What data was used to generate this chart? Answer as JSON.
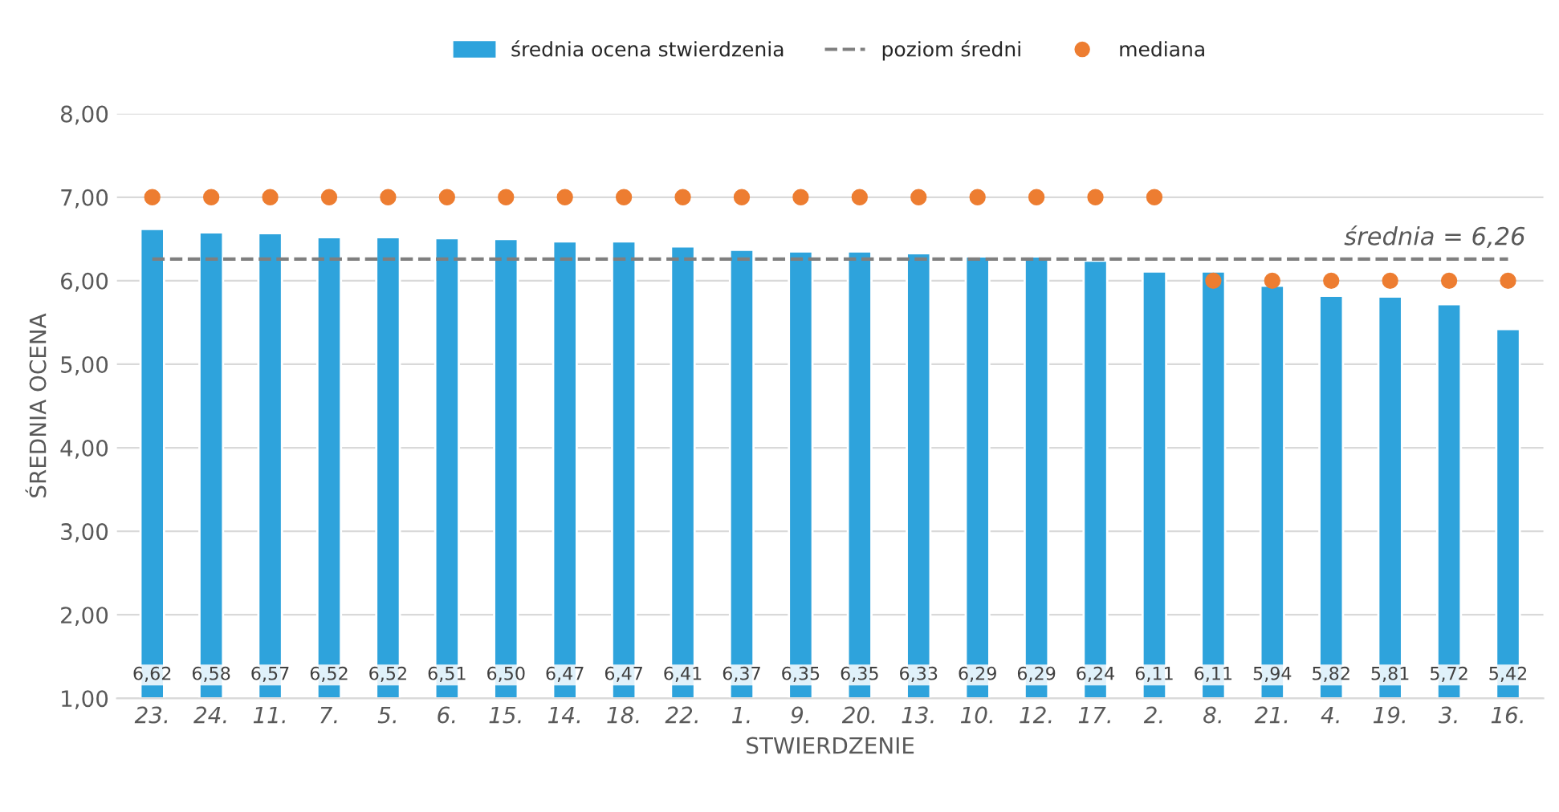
{
  "chart_data": {
    "type": "bar",
    "xlabel": "STWIERDZENIE",
    "ylabel": "ŚREDNIA OCENA",
    "categories": [
      "23.",
      "24.",
      "11.",
      "7.",
      "5.",
      "6.",
      "15.",
      "14.",
      "18.",
      "22.",
      "1.",
      "9.",
      "20.",
      "13.",
      "10.",
      "12.",
      "17.",
      "2.",
      "8.",
      "21.",
      "4.",
      "19.",
      "3.",
      "16."
    ],
    "series": [
      {
        "name": "średnia ocena stwierdzenia",
        "color": "#2ea3dc",
        "values": [
          6.62,
          6.58,
          6.57,
          6.52,
          6.52,
          6.51,
          6.5,
          6.47,
          6.47,
          6.41,
          6.37,
          6.35,
          6.35,
          6.33,
          6.29,
          6.29,
          6.24,
          6.11,
          6.11,
          5.94,
          5.82,
          5.81,
          5.72,
          5.42
        ],
        "value_labels": [
          "6,62",
          "6,58",
          "6,57",
          "6,52",
          "6,52",
          "6,51",
          "6,50",
          "6,47",
          "6,47",
          "6,41",
          "6,37",
          "6,35",
          "6,35",
          "6,33",
          "6,29",
          "6,29",
          "6,24",
          "6,11",
          "6,11",
          "5,94",
          "5,82",
          "5,81",
          "5,72",
          "5,42"
        ]
      },
      {
        "name": "poziom średni",
        "type": "line",
        "color": "#7f7f7f",
        "line_style": "dashed",
        "values": [
          6.26,
          6.26,
          6.26,
          6.26,
          6.26,
          6.26,
          6.26,
          6.26,
          6.26,
          6.26,
          6.26,
          6.26,
          6.26,
          6.26,
          6.26,
          6.26,
          6.26,
          6.26,
          6.26,
          6.26,
          6.26,
          6.26,
          6.26,
          6.26
        ]
      },
      {
        "name": "mediana",
        "type": "scatter",
        "color": "#ed7d31",
        "marker": "circle",
        "values": [
          7,
          7,
          7,
          7,
          7,
          7,
          7,
          7,
          7,
          7,
          7,
          7,
          7,
          7,
          7,
          7,
          7,
          7,
          6,
          6,
          6,
          6,
          6,
          6
        ]
      }
    ],
    "annotations": [
      {
        "text": "średnia = 6,26",
        "x": "16.",
        "y": 6.26
      }
    ],
    "ylim": [
      1,
      8
    ],
    "yticks": [
      {
        "value": 1,
        "label": "1,00"
      },
      {
        "value": 2,
        "label": "2,00"
      },
      {
        "value": 3,
        "label": "3,00"
      },
      {
        "value": 4,
        "label": "4,00"
      },
      {
        "value": 5,
        "label": "5,00"
      },
      {
        "value": 6,
        "label": "6,00"
      },
      {
        "value": 7,
        "label": "7,00"
      },
      {
        "value": 8,
        "label": "8,00"
      }
    ],
    "grid": "y",
    "legend": "top"
  }
}
